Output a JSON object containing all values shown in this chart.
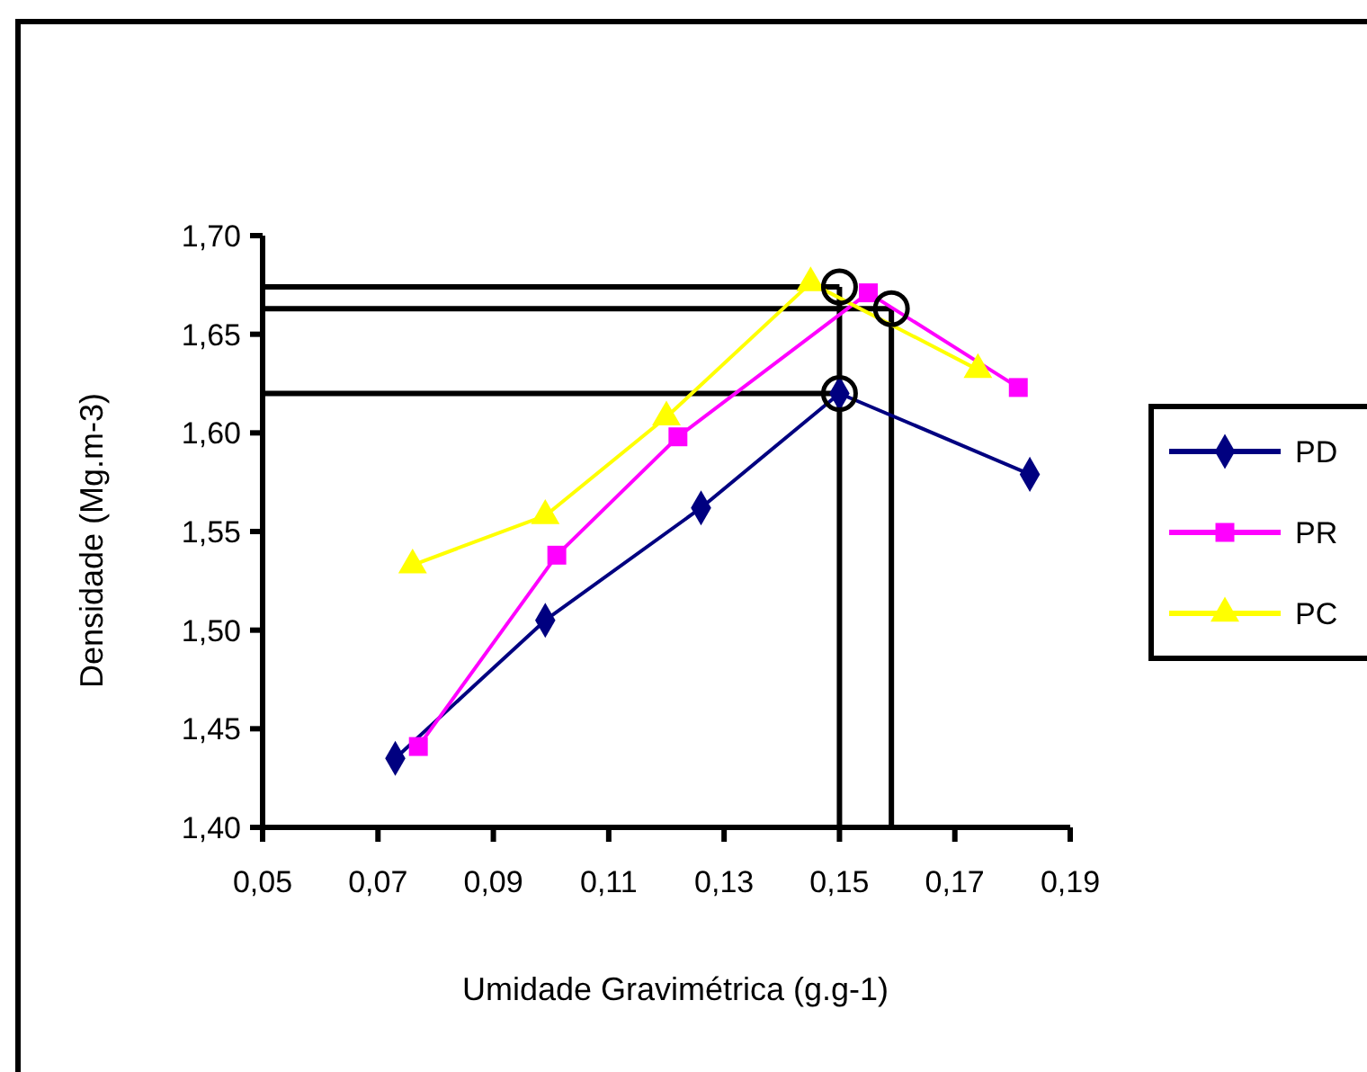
{
  "chart_data": {
    "type": "line",
    "xlabel": "Umidade Gravimétrica (g.g-1)",
    "ylabel": "Densidade (Mg.m-3)",
    "xlim": [
      0.05,
      0.19
    ],
    "ylim": [
      1.4,
      1.7
    ],
    "xticks": [
      {
        "value": 0.05,
        "label": "0,05"
      },
      {
        "value": 0.07,
        "label": "0,07"
      },
      {
        "value": 0.09,
        "label": "0,09"
      },
      {
        "value": 0.11,
        "label": "0,11"
      },
      {
        "value": 0.13,
        "label": "0,13"
      },
      {
        "value": 0.15,
        "label": "0,15"
      },
      {
        "value": 0.17,
        "label": "0,17"
      },
      {
        "value": 0.19,
        "label": "0,19"
      }
    ],
    "yticks": [
      {
        "value": 1.4,
        "label": "1,40"
      },
      {
        "value": 1.45,
        "label": "1,45"
      },
      {
        "value": 1.5,
        "label": "1,50"
      },
      {
        "value": 1.55,
        "label": "1,55"
      },
      {
        "value": 1.6,
        "label": "1,60"
      },
      {
        "value": 1.65,
        "label": "1,65"
      },
      {
        "value": 1.7,
        "label": "1,70"
      }
    ],
    "grid": false,
    "legend": "right",
    "series": [
      {
        "name": "PD",
        "color": "#000080",
        "marker": "diamond",
        "x": [
          0.073,
          0.099,
          0.126,
          0.15,
          0.183
        ],
        "values": [
          1.435,
          1.505,
          1.562,
          1.62,
          1.579
        ]
      },
      {
        "name": "PR",
        "color": "#ff00ff",
        "marker": "square",
        "x": [
          0.077,
          0.101,
          0.122,
          0.155,
          0.181
        ],
        "values": [
          1.441,
          1.538,
          1.598,
          1.671,
          1.623
        ]
      },
      {
        "name": "PC",
        "color": "#ffff00",
        "marker": "triangle",
        "x": [
          0.076,
          0.099,
          0.12,
          0.145,
          0.174
        ],
        "values": [
          1.533,
          1.558,
          1.608,
          1.676,
          1.632
        ]
      }
    ],
    "ref_lines": [
      {
        "axis": "y",
        "value": 1.674,
        "color": "#000000"
      },
      {
        "axis": "y",
        "value": 1.663,
        "color": "#000000"
      },
      {
        "axis": "y",
        "value": 1.62,
        "color": "#000000"
      },
      {
        "axis": "x",
        "value": 0.15,
        "color": "#000000"
      },
      {
        "axis": "x",
        "value": 0.159,
        "color": "#000000"
      }
    ]
  }
}
